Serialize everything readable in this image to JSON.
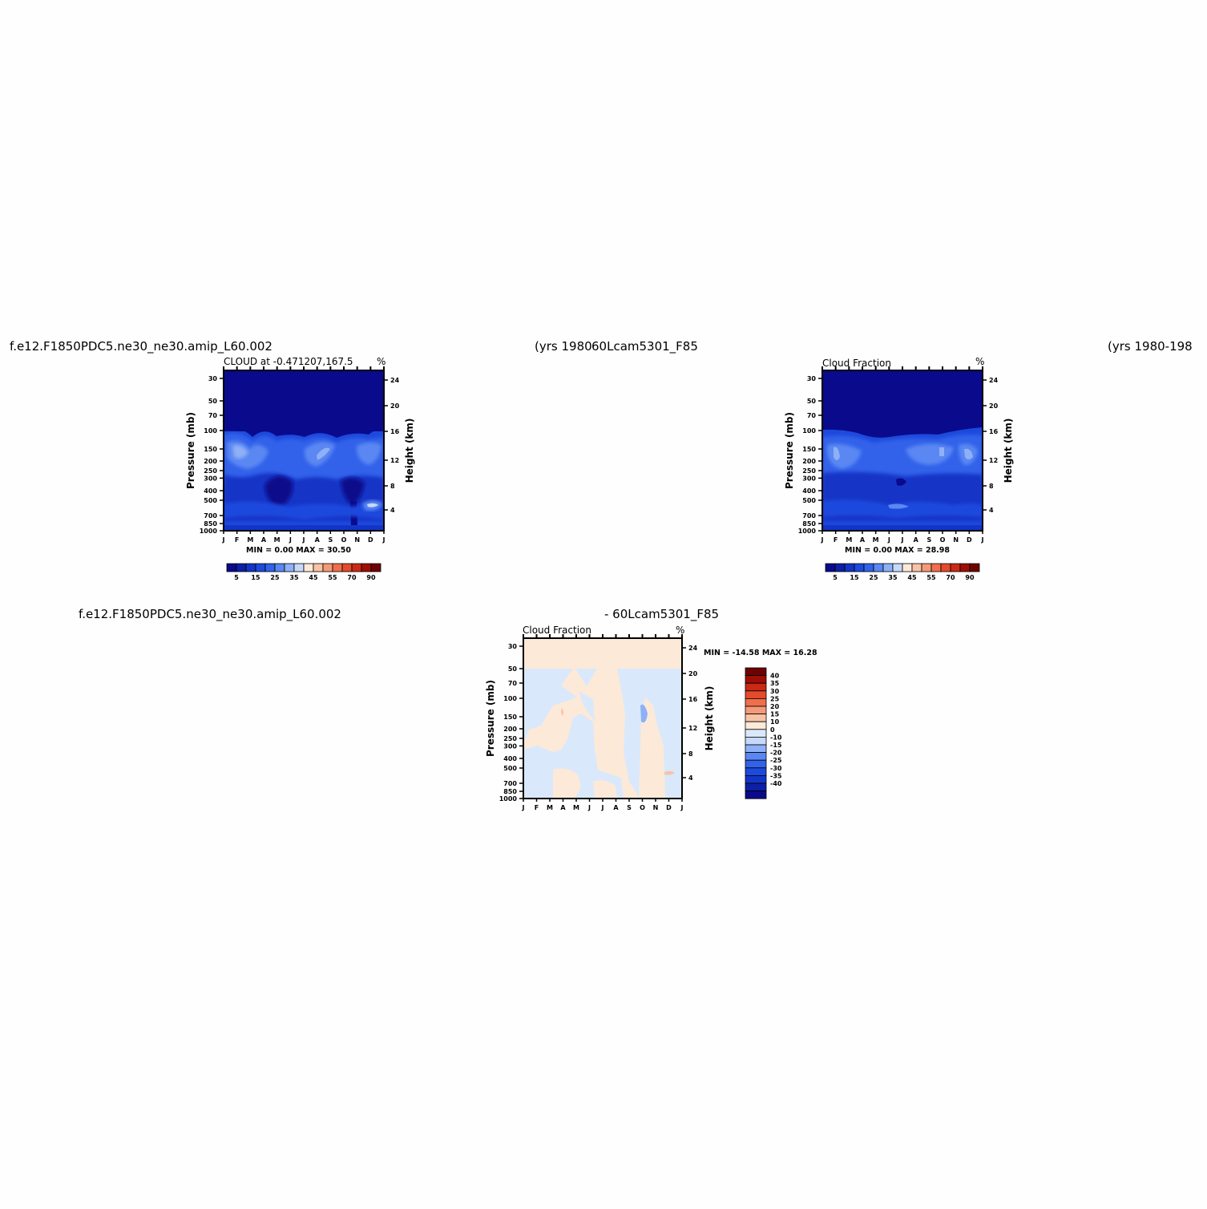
{
  "header": {
    "case1_name": "f.e12.F1850PDC5.ne30_ne30.amip_L60.002",
    "case1_years": "(yrs 1980",
    "case2_name": "60Lcam5301_F85",
    "case2_years": "(yrs 1980-198",
    "diff_case1_name": "f.e12.F1850PDC5.ne30_ne30.amip_L60.002",
    "diff_case2_name": "- 60Lcam5301_F85"
  },
  "colors": {
    "case_scale": [
      "#0a0a8c",
      "#0c1fa6",
      "#1235c7",
      "#1d49dd",
      "#3262ea",
      "#5a87f2",
      "#8eb0f7",
      "#c6d9fb",
      "#fde9d8",
      "#f8c2a6",
      "#f49a78",
      "#ef6e4b",
      "#e44a2c",
      "#c92a16",
      "#9e0e06",
      "#6e0202"
    ],
    "diff_scale": [
      "#0a0a8c",
      "#0c1fa6",
      "#1235c7",
      "#1d49dd",
      "#3262ea",
      "#5a87f2",
      "#8eb0f7",
      "#c6d9fb",
      "#d9e9fb",
      "#fde9d8",
      "#f8c2a6",
      "#f49a78",
      "#ef6e4b",
      "#e44a2c",
      "#c92a16",
      "#9e0e06",
      "#6e0202"
    ],
    "diff_fill_positive": "#fde9d8",
    "diff_fill_negative": "#d9e9fb"
  },
  "chart_data": [
    {
      "type": "heatmap",
      "title": "CLOUD at -0.471207,167.5",
      "units": "%",
      "xlabel": "",
      "ylabel": "Pressure (mb)",
      "ylabel_right": "Height (km)",
      "x_ticks": [
        "J",
        "F",
        "M",
        "A",
        "M",
        "J",
        "J",
        "A",
        "S",
        "O",
        "N",
        "D",
        "J"
      ],
      "y_ticks": [
        "30",
        "50",
        "70",
        "100",
        "150",
        "200",
        "250",
        "300",
        "400",
        "500",
        "700",
        "850",
        "1000"
      ],
      "y_ticks_right": [
        "24",
        "20",
        "16",
        "12",
        "8",
        "4"
      ],
      "min_max_text": "MIN =    0.00  MAX =   30.50",
      "min": 0.0,
      "max": 30.5,
      "colorbar_labels": [
        "5",
        "15",
        "25",
        "35",
        "45",
        "55",
        "70",
        "90"
      ]
    },
    {
      "type": "heatmap",
      "title": "Cloud Fraction",
      "units": "%",
      "xlabel": "",
      "ylabel": "Pressure (mb)",
      "ylabel_right": "Height (km)",
      "x_ticks": [
        "J",
        "F",
        "M",
        "A",
        "M",
        "J",
        "J",
        "A",
        "S",
        "O",
        "N",
        "D",
        "J"
      ],
      "y_ticks": [
        "30",
        "50",
        "70",
        "100",
        "150",
        "200",
        "250",
        "300",
        "400",
        "500",
        "700",
        "850",
        "1000"
      ],
      "y_ticks_right": [
        "24",
        "20",
        "16",
        "12",
        "8",
        "4"
      ],
      "min_max_text": "MIN =    0.00  MAX =   28.98",
      "min": 0.0,
      "max": 28.98,
      "colorbar_labels": [
        "5",
        "15",
        "25",
        "35",
        "45",
        "55",
        "70",
        "90"
      ]
    },
    {
      "type": "heatmap",
      "title": "Cloud Fraction",
      "units": "%",
      "xlabel": "",
      "ylabel": "Pressure (mb)",
      "ylabel_right": "Height (km)",
      "x_ticks": [
        "J",
        "F",
        "M",
        "A",
        "M",
        "J",
        "J",
        "A",
        "S",
        "O",
        "N",
        "D",
        "J"
      ],
      "y_ticks": [
        "30",
        "50",
        "70",
        "100",
        "150",
        "200",
        "250",
        "300",
        "400",
        "500",
        "700",
        "850",
        "1000"
      ],
      "y_ticks_right": [
        "24",
        "20",
        "16",
        "12",
        "8",
        "4"
      ],
      "min_max_text": "MIN = -14.58  MAX =   16.28",
      "min": -14.58,
      "max": 16.28,
      "colorbar_labels": [
        "40",
        "35",
        "30",
        "25",
        "20",
        "15",
        "10",
        "0",
        "-10",
        "-15",
        "-20",
        "-25",
        "-30",
        "-35",
        "-40"
      ]
    }
  ]
}
